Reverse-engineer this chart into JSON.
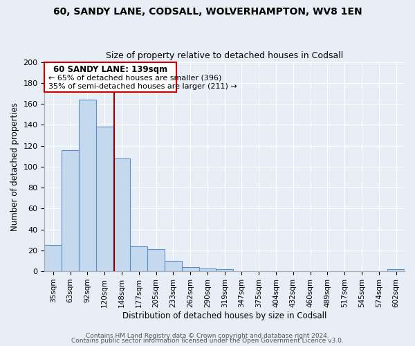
{
  "title": "60, SANDY LANE, CODSALL, WOLVERHAMPTON, WV8 1EN",
  "subtitle": "Size of property relative to detached houses in Codsall",
  "xlabel": "Distribution of detached houses by size in Codsall",
  "ylabel": "Number of detached properties",
  "bar_labels": [
    "35sqm",
    "63sqm",
    "92sqm",
    "120sqm",
    "148sqm",
    "177sqm",
    "205sqm",
    "233sqm",
    "262sqm",
    "290sqm",
    "319sqm",
    "347sqm",
    "375sqm",
    "404sqm",
    "432sqm",
    "460sqm",
    "489sqm",
    "517sqm",
    "545sqm",
    "574sqm",
    "602sqm"
  ],
  "bar_values": [
    25,
    116,
    164,
    138,
    108,
    24,
    21,
    10,
    4,
    3,
    2,
    0,
    0,
    0,
    0,
    0,
    0,
    0,
    0,
    0,
    2
  ],
  "bar_color": "#c5d9ee",
  "bar_edge_color": "#5b8fc9",
  "vline_x_index": 3.57,
  "vline_color": "#8b0000",
  "annotation_title": "60 SANDY LANE: 139sqm",
  "annotation_line1": "← 65% of detached houses are smaller (396)",
  "annotation_line2": "35% of semi-detached houses are larger (211) →",
  "annotation_box_color": "white",
  "annotation_box_edge": "#cc0000",
  "ylim": [
    0,
    200
  ],
  "yticks": [
    0,
    20,
    40,
    60,
    80,
    100,
    120,
    140,
    160,
    180,
    200
  ],
  "footer1": "Contains HM Land Registry data © Crown copyright and database right 2024.",
  "footer2": "Contains public sector information licensed under the Open Government Licence v3.0.",
  "bg_color": "#e8eef5",
  "plot_bg_color": "#e8eef5",
  "grid_color": "#ffffff"
}
